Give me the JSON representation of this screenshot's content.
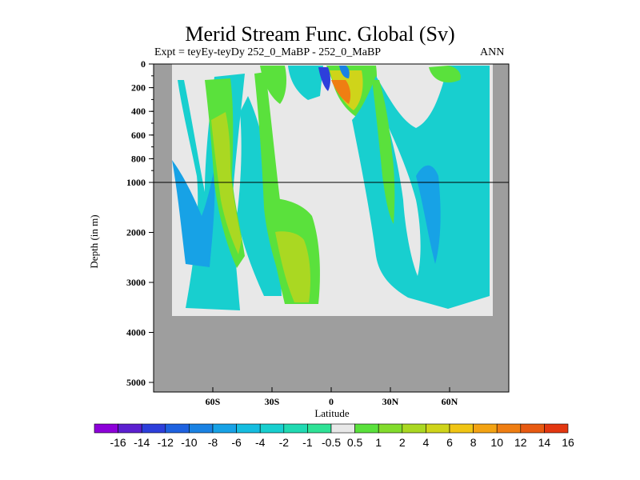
{
  "title": "Merid Stream Func. Global (Sv)",
  "expt_label": "Expt = teyEy-teyDy 252_0_MaBP - 252_0_MaBP",
  "season": "ANN",
  "chart_data": {
    "type": "heatmap",
    "title": "Merid Stream Func. Global (Sv)",
    "xlabel": "Latitude",
    "ylabel": "Depth (in m)",
    "xlim": [
      -90,
      90
    ],
    "ylim": [
      0,
      5000
    ],
    "x_ticks": [
      "60S",
      "30S",
      "0",
      "30N",
      "60N"
    ],
    "y_ticks_upper": [
      "0",
      "200",
      "400",
      "600",
      "800",
      "1000"
    ],
    "y_ticks_lower": [
      "2000",
      "3000",
      "4000",
      "5000"
    ],
    "y_axis_break_at_m": 1000,
    "colorbar_labels": [
      "-16",
      "-14",
      "-12",
      "-10",
      "-8",
      "-6",
      "-4",
      "-2",
      "-1",
      "-0.5",
      "0.5",
      "1",
      "2",
      "4",
      "6",
      "8",
      "10",
      "12",
      "14",
      "16"
    ],
    "colorbar_colors": [
      "#8d00d9",
      "#5c1fd0",
      "#2d3fdb",
      "#1e62e0",
      "#1a82e3",
      "#17a2e6",
      "#15bde0",
      "#18cfcf",
      "#20dab2",
      "#2ee296",
      "#e8e8e8",
      "#5ae13c",
      "#82dc2c",
      "#aad822",
      "#cfd41a",
      "#f0c514",
      "#f3a313",
      "#ef7e12",
      "#e85a11",
      "#e33710"
    ],
    "fill_colors": {
      "land": "#9e9e9e",
      "near_zero": "#e8e8e8",
      "negative_light": "#18cfcf",
      "negative_mid": "#17a2e6",
      "positive_light": "#5ae13c",
      "positive_mid": "#aad822",
      "positive_strong": "#f0c514",
      "positive_peak": "#ef7e12",
      "negative_peak": "#2d3fdb"
    }
  }
}
